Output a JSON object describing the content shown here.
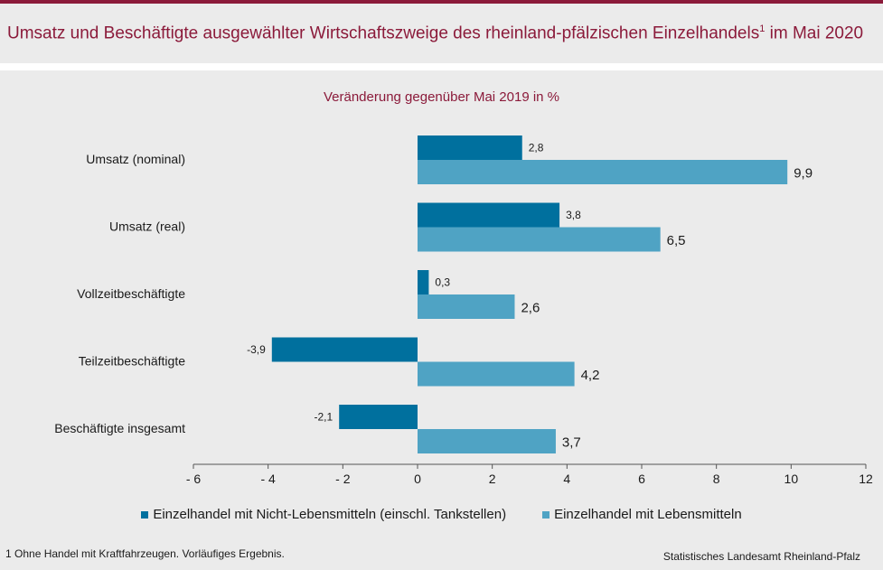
{
  "header": {
    "title": "Umsatz und Beschäftigte ausgewählter Wirtschaftszweige des rheinland-pfälzischen Einzelhandels",
    "title_sup": "1",
    "title_suffix": " im Mai 2020"
  },
  "footer": {
    "footnote": "1 Ohne Handel mit Kraftfahrzeugen. Vorläufiges Ergebnis.",
    "source": "Statistisches Landesamt Rheinland-Pfalz"
  },
  "colors": {
    "brand": "#8b1a3a",
    "series1": "#00709e",
    "series2": "#4fa3c4"
  },
  "chart_data": {
    "type": "bar",
    "orientation": "horizontal",
    "subtitle": "Veränderung gegenüber Mai 2019 in %",
    "categories": [
      "Umsatz (nominal)",
      "Umsatz (real)",
      "Vollzeitbeschäftigte",
      "Teilzeitbeschäftigte",
      "Beschäftigte insgesamt"
    ],
    "series": [
      {
        "name": "Einzelhandel mit Nicht-Lebensmitteln (einschl. Tankstellen)",
        "values": [
          2.8,
          3.8,
          0.3,
          -3.9,
          -2.1
        ],
        "labels": [
          "2,8",
          "3,8",
          "0,3",
          "-3,9",
          "-2,1"
        ],
        "color": "#00709e"
      },
      {
        "name": "Einzelhandel mit Lebensmitteln",
        "values": [
          9.9,
          6.5,
          2.6,
          4.2,
          3.7
        ],
        "labels": [
          "9,9",
          "6,5",
          "2,6",
          "4,2",
          "3,7"
        ],
        "color": "#4fa3c4"
      }
    ],
    "xlim": [
      -6,
      12
    ],
    "xticks": [
      -6,
      -4,
      -2,
      0,
      2,
      4,
      6,
      8,
      10,
      12
    ],
    "xtick_labels": [
      "- 6",
      "- 4",
      "- 2",
      "0",
      "2",
      "4",
      "6",
      "8",
      "10",
      "12"
    ],
    "grid": false,
    "legend_position": "bottom"
  }
}
